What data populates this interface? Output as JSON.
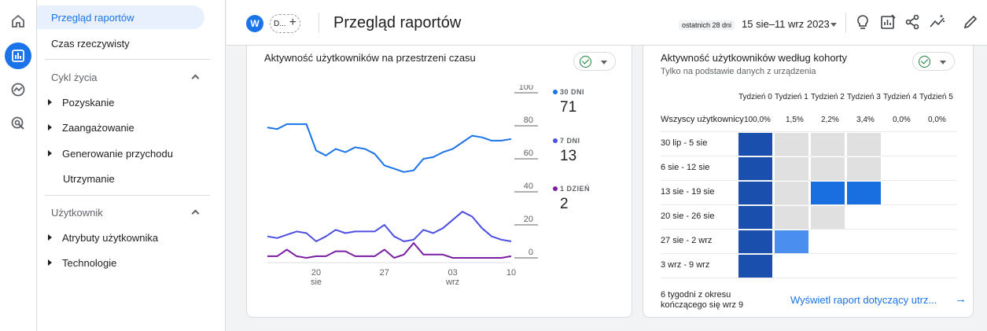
{
  "header": {
    "avatar_letter": "W",
    "chip_label": "D...",
    "chip_plus": "+",
    "title": "Przegląd raportów",
    "date_chip": "ostatnich 28 dni",
    "date_range": "15 sie–11 wrz 2023"
  },
  "sidebar": {
    "items": [
      {
        "label": "Przegląd raportów"
      },
      {
        "label": "Czas rzeczywisty"
      },
      {
        "label": "Cykl życia"
      },
      {
        "label": "Pozyskanie"
      },
      {
        "label": "Zaangażowanie"
      },
      {
        "label": "Generowanie przychodu"
      },
      {
        "label": "Utrzymanie"
      },
      {
        "label": "Użytkownik"
      },
      {
        "label": "Atrybuty użytkownika"
      },
      {
        "label": "Technologie"
      }
    ]
  },
  "activity_card": {
    "title": "Aktywność użytkowników na przestrzeni czasu",
    "legend": [
      {
        "label": "30 DNI",
        "value": "71",
        "color": "#1a73e8"
      },
      {
        "label": "7 DNI",
        "value": "13",
        "color": "#4c4fe0"
      },
      {
        "label": "1 DZIEŃ",
        "value": "2",
        "color": "#7b1fa2"
      }
    ]
  },
  "chart_data": {
    "type": "line",
    "y_ticks": [
      "100",
      "80",
      "60",
      "40",
      "20",
      "0"
    ],
    "x_tick_labels": [
      {
        "top": "20",
        "bottom": "sie"
      },
      {
        "top": "27",
        "bottom": ""
      },
      {
        "top": "03",
        "bottom": "wrz"
      },
      {
        "top": "10",
        "bottom": ""
      }
    ],
    "series": [
      {
        "name": "30 DNI",
        "color": "#1a73e8",
        "values": [
          79,
          78,
          81,
          81,
          81,
          65,
          62,
          66,
          64,
          67,
          66,
          63,
          56,
          54,
          52,
          53,
          60,
          61,
          64,
          66,
          70,
          74,
          73,
          71,
          71,
          72
        ]
      },
      {
        "name": "7 DNI",
        "color": "#4c4fe0",
        "values": [
          13,
          12,
          14,
          16,
          15,
          10,
          13,
          17,
          15,
          16,
          16,
          16,
          20,
          13,
          10,
          11,
          17,
          15,
          18,
          23,
          28,
          25,
          18,
          13,
          11,
          10
        ]
      },
      {
        "name": "1 DZIEŃ",
        "color": "#7b1fa2",
        "values": [
          1,
          1,
          5,
          1,
          0,
          1,
          1,
          4,
          4,
          1,
          1,
          1,
          5,
          0,
          2,
          9,
          2,
          2,
          2,
          0,
          0,
          0,
          0,
          0,
          0,
          1
        ]
      }
    ],
    "ylim": [
      0,
      100
    ]
  },
  "cohort_card": {
    "title": "Aktywność użytkowników według kohorty",
    "subtitle": "Tylko na podstawie danych z urządzenia",
    "columns": [
      "Tydzień 0",
      "Tydzień 1",
      "Tydzień 2",
      "Tydzień 3",
      "Tydzień 4",
      "Tydzień 5"
    ],
    "all_users_label": "Wszyscy użytkownicy",
    "all_users_pcts": [
      "100,0%",
      "1,5%",
      "2,2%",
      "3,4%",
      "0,0%",
      "0,0%"
    ],
    "rows": [
      {
        "label": "30 lip - 5 sie",
        "cells": [
          "#1a4fad",
          "#e0e0e0",
          "#e0e0e0",
          "#e0e0e0"
        ]
      },
      {
        "label": "6 sie - 12 sie",
        "cells": [
          "#1a4fad",
          "#e0e0e0",
          "#e0e0e0",
          "#e0e0e0"
        ]
      },
      {
        "label": "13 sie - 19 sie",
        "cells": [
          "#1a4fad",
          "#e0e0e0",
          "#1a6fe0",
          "#1a6fe0"
        ]
      },
      {
        "label": "20 sie - 26 sie",
        "cells": [
          "#1a4fad",
          "#e0e0e0",
          "#e0e0e0"
        ]
      },
      {
        "label": "27 sie - 2 wrz",
        "cells": [
          "#1a4fad",
          "#4a8ef0"
        ]
      },
      {
        "label": "3 wrz - 9 wrz",
        "cells": [
          "#1a4fad"
        ]
      }
    ],
    "footer_note": "6 tygodni z okresu kończącego się wrz 9",
    "footer_link": "Wyświetl raport dotyczący utrz..."
  }
}
